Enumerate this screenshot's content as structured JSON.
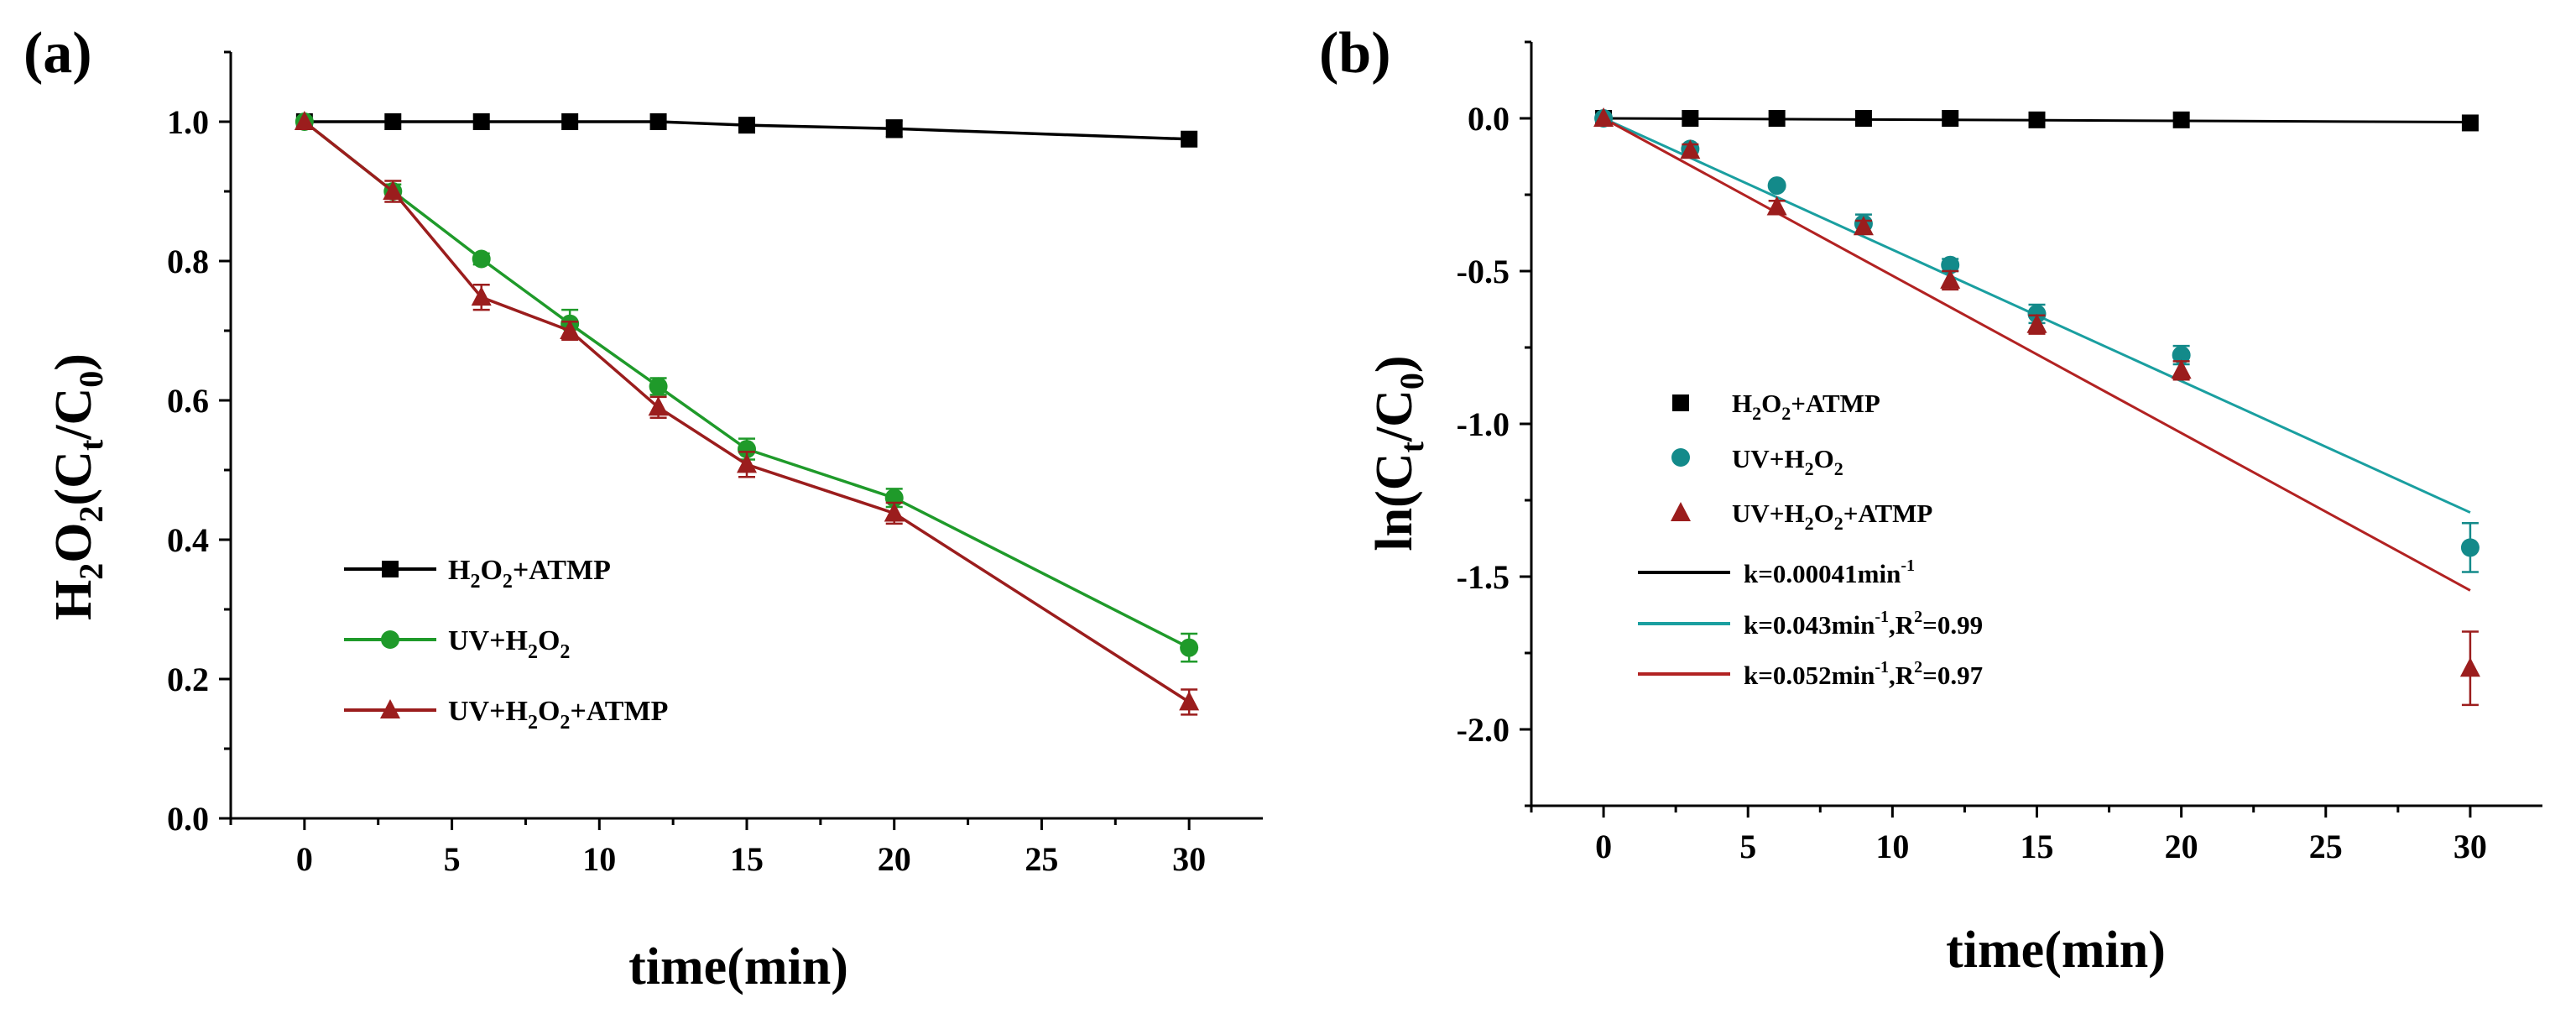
{
  "chart_data": [
    {
      "panel": "(a)",
      "type": "line",
      "xlabel": "time(min)",
      "ylabel": "H2O2(Ct/C0)",
      "xlim": [
        -2.5,
        32.5
      ],
      "ylim": [
        0,
        1.1
      ],
      "x_ticks": [
        0,
        5,
        10,
        15,
        20,
        25,
        30
      ],
      "y_ticks": [
        0.0,
        0.2,
        0.4,
        0.6,
        0.8,
        1.0
      ],
      "y_tick_labels": [
        "0.0",
        "0.2",
        "0.4",
        "0.6",
        "0.8",
        "1.0"
      ],
      "legend_position": "lower-left",
      "series": [
        {
          "name": "H2O2+ATMP",
          "color": "#000000",
          "marker": "square",
          "x": [
            0,
            3,
            6,
            9,
            12,
            15,
            20,
            30
          ],
          "y": [
            1.0,
            1.0,
            1.0,
            1.0,
            1.0,
            0.995,
            0.99,
            0.975
          ],
          "err": [
            0,
            0,
            0,
            0,
            0,
            0,
            0.012,
            0
          ]
        },
        {
          "name": "UV+H2O2",
          "color": "#1f9a2a",
          "marker": "circle",
          "x": [
            0,
            3,
            6,
            9,
            12,
            15,
            20,
            30
          ],
          "y": [
            1.0,
            0.9,
            0.803,
            0.71,
            0.62,
            0.53,
            0.46,
            0.245
          ],
          "err": [
            0,
            0.01,
            0.008,
            0.02,
            0.012,
            0.015,
            0.013,
            0.02
          ]
        },
        {
          "name": "UV+H2O2+ATMP",
          "color": "#9b1d1d",
          "marker": "triangle",
          "x": [
            0,
            3,
            6,
            9,
            12,
            15,
            20,
            30
          ],
          "y": [
            1.0,
            0.9,
            0.748,
            0.7,
            0.59,
            0.508,
            0.438,
            0.167
          ],
          "err": [
            0,
            0.015,
            0.018,
            0.013,
            0.015,
            0.018,
            0.015,
            0.018
          ]
        }
      ]
    },
    {
      "panel": "(b)",
      "type": "scatter",
      "xlabel": "time(min)",
      "ylabel": "ln(Ct/C0)",
      "xlim": [
        -2.5,
        32.5
      ],
      "ylim": [
        -2.25,
        0.25
      ],
      "x_ticks": [
        0,
        5,
        10,
        15,
        20,
        25,
        30
      ],
      "y_ticks": [
        0.0,
        -0.5,
        -1.0,
        -1.5,
        -2.0
      ],
      "y_tick_labels": [
        "0.0",
        "-0.5",
        "-1.0",
        "-1.5",
        "-2.0"
      ],
      "legend_position": "left-center",
      "series": [
        {
          "name": "H2O2+ATMP",
          "color": "#000000",
          "marker": "square",
          "x": [
            0,
            3,
            6,
            9,
            12,
            15,
            20,
            30
          ],
          "y": [
            0.0,
            0.0,
            0.0,
            0.0,
            0.0,
            -0.005,
            -0.005,
            -0.015
          ],
          "err": [
            0,
            0,
            0,
            0,
            0,
            0,
            0,
            0
          ]
        },
        {
          "name": "UV+H2O2",
          "color": "#138a8a",
          "marker": "circle",
          "x": [
            0,
            3,
            6,
            9,
            12,
            15,
            20,
            30
          ],
          "y": [
            0.0,
            -0.1,
            -0.22,
            -0.345,
            -0.48,
            -0.64,
            -0.775,
            -1.405
          ],
          "err": [
            0,
            0.01,
            0.01,
            0.03,
            0.02,
            0.03,
            0.03,
            0.08
          ]
        },
        {
          "name": "UV+H2O2+ATMP",
          "color": "#9b1d1d",
          "marker": "triangle",
          "x": [
            0,
            3,
            6,
            9,
            12,
            15,
            20,
            30
          ],
          "y": [
            0.0,
            -0.105,
            -0.29,
            -0.355,
            -0.53,
            -0.675,
            -0.825,
            -1.8
          ],
          "err": [
            0,
            0.02,
            0.02,
            0.02,
            0.03,
            0.03,
            0.03,
            0.12
          ]
        }
      ],
      "fits": [
        {
          "label": "k=0.00041min-1",
          "color": "#000000",
          "slope": -0.00041,
          "x_range": [
            0,
            30
          ]
        },
        {
          "label": "k=0.043min-1,R2=0.99",
          "color": "#1a9fa0",
          "slope": -0.043,
          "x_range": [
            0,
            30
          ]
        },
        {
          "label": "k=0.052min-1,R2=0.97",
          "color": "#b22222",
          "slope": -0.0515,
          "x_range": [
            0,
            30
          ]
        }
      ]
    }
  ]
}
